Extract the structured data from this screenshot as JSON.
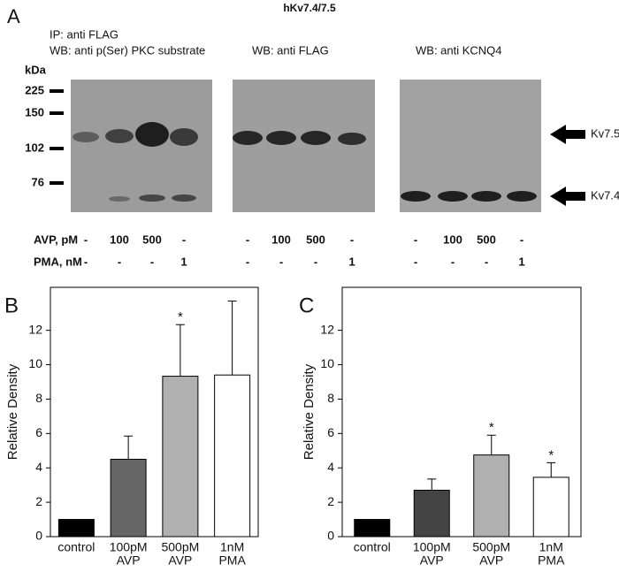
{
  "figure_title": "hKv7.4/7.5",
  "panel_a": {
    "label": "A",
    "ip_label": "IP: anti FLAG",
    "kda_label": "kDa",
    "markers": [
      "225",
      "150",
      "102",
      "76"
    ],
    "band_labels": [
      "Kv7.5",
      "Kv7.4"
    ],
    "row_labels": [
      "AVP, pM",
      "PMA, nM"
    ],
    "groups": [
      {
        "header": "WB: anti p(Ser) PKC substrate",
        "avp": [
          "-",
          "100",
          "500",
          "-"
        ],
        "pma": [
          "-",
          "-",
          "-",
          "1"
        ]
      },
      {
        "header": "WB: anti FLAG",
        "avp": [
          "-",
          "100",
          "500",
          "-"
        ],
        "pma": [
          "-",
          "-",
          "-",
          "1"
        ]
      },
      {
        "header": "WB: anti KCNQ4",
        "avp": [
          "-",
          "100",
          "500",
          "-"
        ],
        "pma": [
          "-",
          "-",
          "-",
          "1"
        ]
      }
    ]
  },
  "chart_data": [
    {
      "type": "bar",
      "panel_label": "B",
      "y_label": "Relative Density",
      "categories": [
        [
          "control"
        ],
        [
          "100pM",
          "AVP"
        ],
        [
          "500pM",
          "AVP"
        ],
        [
          "1nM",
          "PMA"
        ]
      ],
      "values": [
        1.0,
        4.5,
        9.33,
        9.4
      ],
      "errors": [
        0,
        1.35,
        3.0,
        4.3
      ],
      "colors": [
        "#000000",
        "#666666",
        "#b0b0b0",
        "#ffffff"
      ],
      "significant": [
        false,
        false,
        true,
        false
      ],
      "significance_marker": "*",
      "ylim": [
        0,
        14.5
      ],
      "yticks": [
        0,
        2,
        4,
        6,
        8,
        10,
        12
      ]
    },
    {
      "type": "bar",
      "panel_label": "C",
      "y_label": "Relative Density",
      "categories": [
        [
          "control"
        ],
        [
          "100pM",
          "AVP"
        ],
        [
          "500pM",
          "AVP"
        ],
        [
          "1nM",
          "PMA"
        ]
      ],
      "values": [
        1.0,
        2.7,
        4.75,
        3.45
      ],
      "errors": [
        0,
        0.65,
        1.15,
        0.85
      ],
      "colors": [
        "#000000",
        "#444444",
        "#b0b0b0",
        "#ffffff"
      ],
      "significant": [
        false,
        false,
        true,
        true
      ],
      "significance_marker": "*",
      "ylim": [
        0,
        14.5
      ],
      "yticks": [
        0,
        2,
        4,
        6,
        8,
        10,
        12
      ]
    }
  ]
}
